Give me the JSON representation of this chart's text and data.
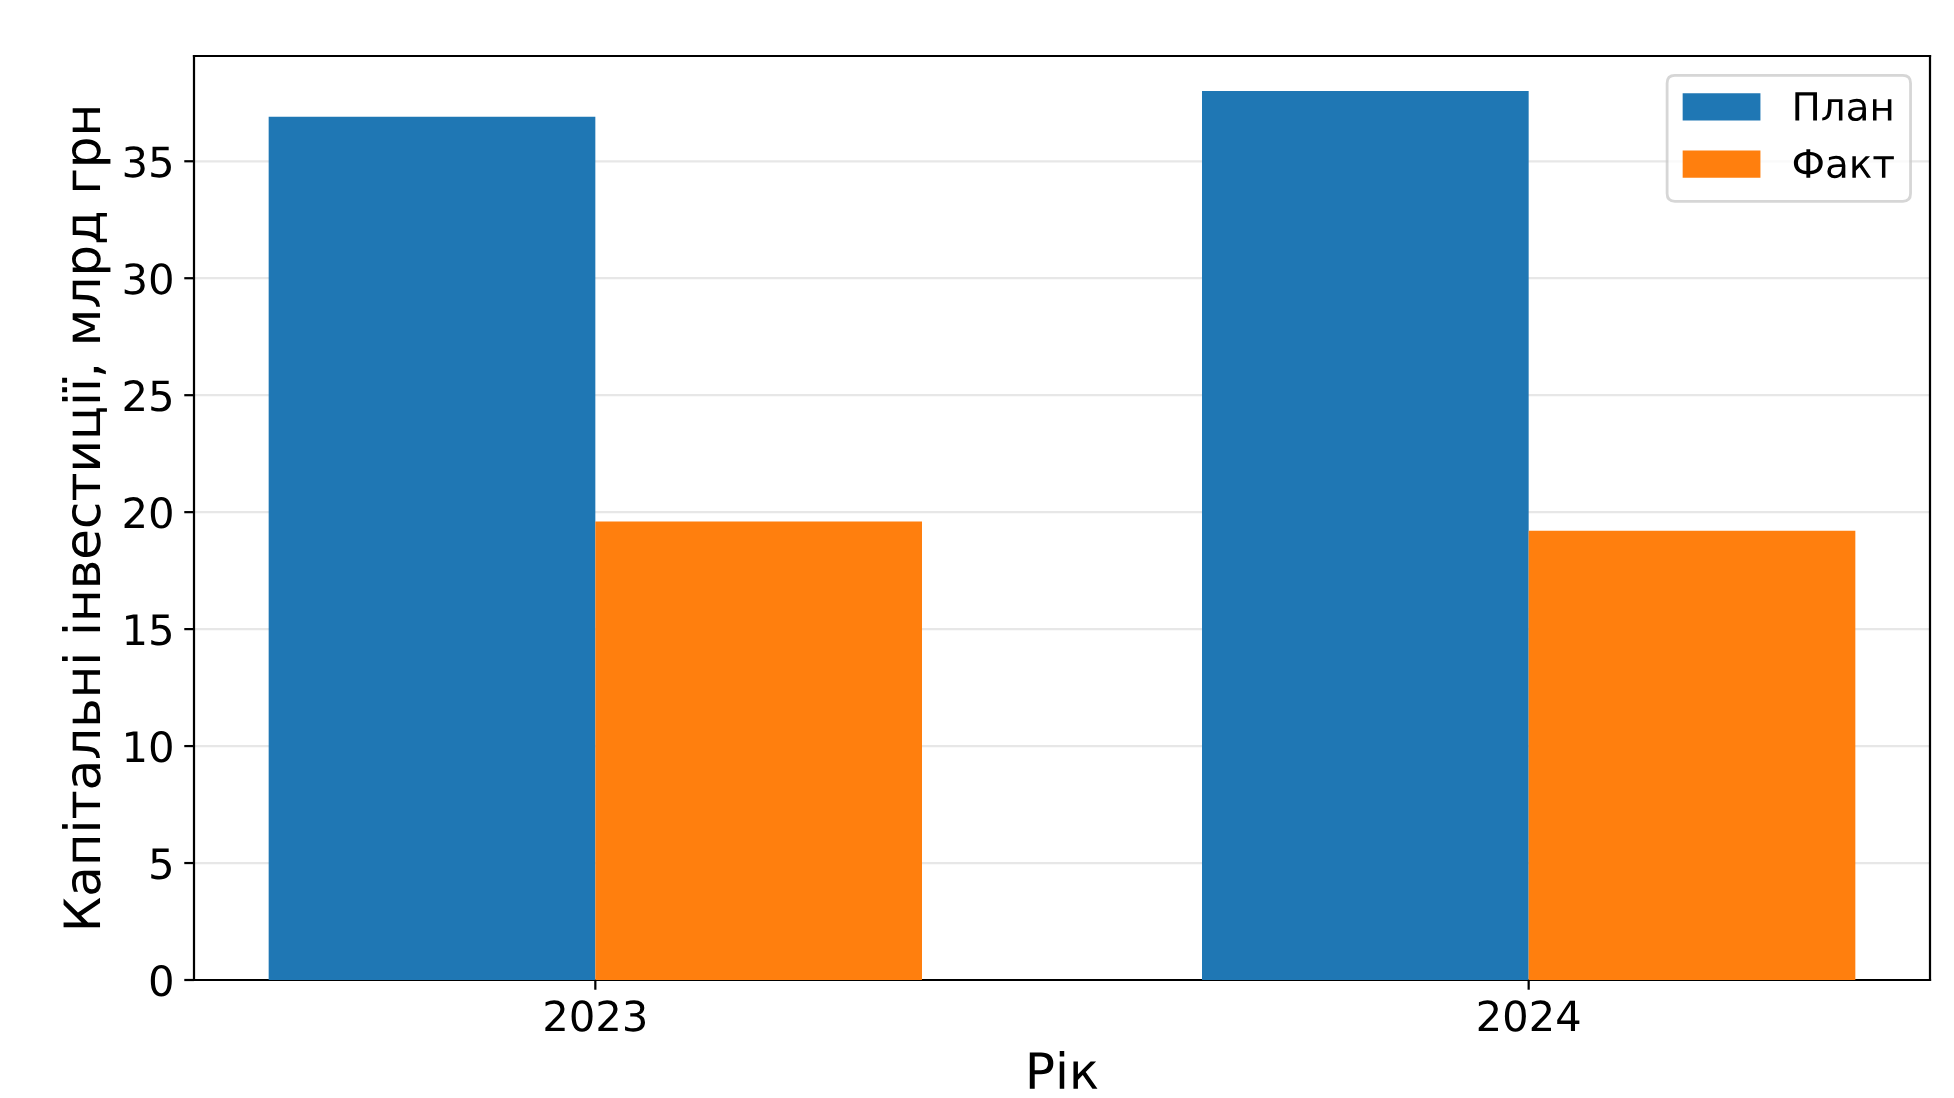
{
  "chart_data": {
    "type": "bar",
    "xlabel": "Рік",
    "ylabel": "Капітальні інвестиції, млрд грн",
    "categories": [
      "2023",
      "2024"
    ],
    "series": [
      {
        "name": "План",
        "color": "#1f77b4",
        "values": [
          36.9,
          38.0
        ]
      },
      {
        "name": "Факт",
        "color": "#ff7f0e",
        "values": [
          19.6,
          19.2
        ]
      }
    ],
    "ylim": [
      0,
      39.5
    ],
    "yticks": [
      0,
      5,
      10,
      15,
      20,
      25,
      30,
      35
    ],
    "grid": "y",
    "legend": "top right"
  }
}
